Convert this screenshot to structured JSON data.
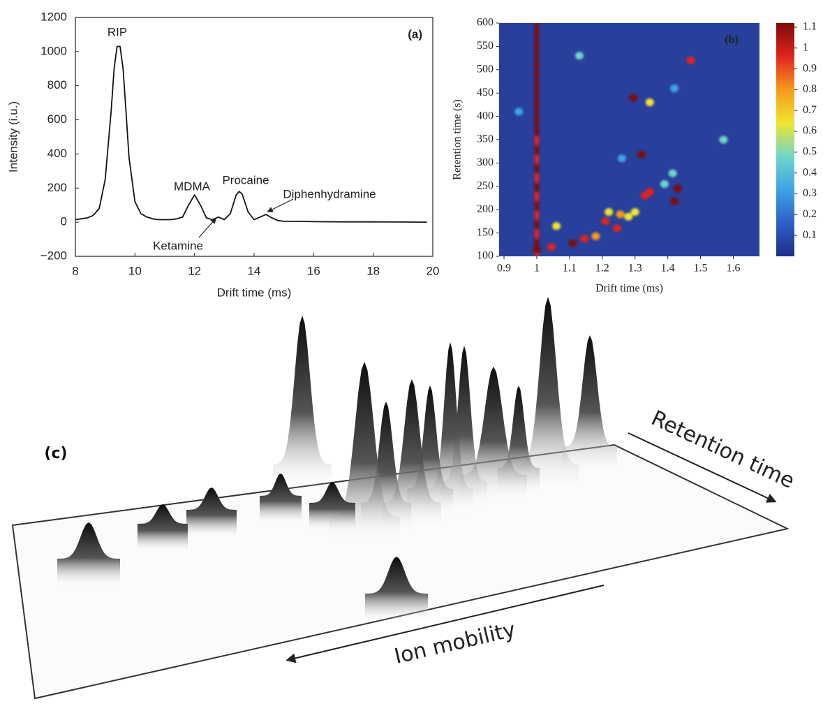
{
  "chart_data": [
    {
      "type": "line",
      "panel_label": "(a)",
      "x_label": "Drift time (ms)",
      "y_label": "Intensity (i.u.)",
      "xlim": [
        8,
        20
      ],
      "xticks": [
        8,
        10,
        12,
        14,
        16,
        18,
        20
      ],
      "ylim": [
        -200,
        1200
      ],
      "yticks": [
        {
          "value": -200,
          "label": "−200"
        },
        0,
        200,
        400,
        600,
        800,
        1000,
        1200
      ],
      "color": "#111111",
      "x": [
        8.0,
        8.2,
        8.4,
        8.6,
        8.8,
        9.0,
        9.2,
        9.3,
        9.4,
        9.5,
        9.6,
        9.7,
        9.8,
        10.0,
        10.2,
        10.4,
        10.6,
        10.8,
        11.0,
        11.2,
        11.4,
        11.6,
        11.8,
        12.0,
        12.2,
        12.4,
        12.6,
        12.8,
        13.0,
        13.2,
        13.4,
        13.5,
        13.6,
        13.8,
        14.0,
        14.2,
        14.4,
        14.6,
        14.8,
        15.0,
        15.5,
        16.0,
        17.0,
        18.0,
        19.0,
        19.8
      ],
      "values": [
        15,
        20,
        25,
        40,
        80,
        250,
        650,
        900,
        1030,
        1030,
        900,
        650,
        380,
        120,
        50,
        30,
        20,
        15,
        15,
        15,
        20,
        30,
        100,
        160,
        100,
        25,
        15,
        30,
        15,
        50,
        160,
        180,
        165,
        60,
        15,
        30,
        45,
        25,
        10,
        5,
        5,
        3,
        2,
        2,
        1,
        0
      ],
      "annotations": [
        "RIP",
        "MDMA",
        "Procaine",
        "Diphenhydramine",
        "Ketamine"
      ]
    },
    {
      "type": "heatmap",
      "panel_label": "(b)",
      "x_label": "Drift time (ms)",
      "y_label": "Retention time (s)",
      "xlim": [
        0.885,
        1.68
      ],
      "xticks": [
        0.9,
        1,
        1.1,
        1.2,
        1.3,
        1.4,
        1.5,
        1.6
      ],
      "ylim": [
        100,
        600
      ],
      "yticks": [
        100,
        150,
        200,
        250,
        300,
        350,
        400,
        450,
        500,
        550,
        600
      ],
      "clim": [
        0,
        1.12
      ],
      "cticks": [
        0.1,
        0.2,
        0.3,
        0.4,
        0.5,
        0.6,
        0.7,
        0.8,
        0.9,
        1,
        1.1
      ],
      "colorscale": [
        "#1f2f8a",
        "#2c5fc7",
        "#3fa3e6",
        "#6fd6c8",
        "#f0e530",
        "#f59a1d",
        "#e0241d",
        "#7c0a0a"
      ],
      "background_color": "#283f9b",
      "x": [
        1,
        1,
        1,
        1,
        1,
        1,
        1,
        1,
        1,
        1,
        1,
        1,
        1,
        1,
        1,
        1,
        1,
        1,
        1,
        1,
        1,
        1,
        1,
        1,
        1,
        1,
        1.045,
        1.11,
        1.145,
        1.18,
        1.21,
        1.245,
        1.255,
        1.22,
        1.28,
        1.3,
        1.33,
        1.345,
        1.43,
        1.42,
        1.32,
        1.295,
        1.345,
        1.47,
        1.13,
        1.06,
        1.57,
        1.42,
        0.945,
        1.415,
        1.39,
        1.26
      ],
      "y": [
        110,
        130,
        150,
        170,
        190,
        210,
        230,
        250,
        270,
        290,
        310,
        330,
        350,
        370,
        390,
        410,
        430,
        450,
        470,
        490,
        510,
        530,
        550,
        570,
        590,
        115,
        120,
        128,
        138,
        143,
        175,
        160,
        190,
        195,
        185,
        195,
        230,
        238,
        245,
        218,
        318,
        440,
        430,
        520,
        530,
        165,
        350,
        460,
        410,
        278,
        255,
        310
      ],
      "values": [
        0.95,
        1.1,
        0.95,
        1.1,
        0.95,
        1.1,
        0.95,
        1.05,
        0.95,
        1.1,
        1.0,
        1.1,
        0.95,
        1.05,
        1.1,
        1.1,
        1.05,
        1.1,
        1.05,
        1.1,
        1.05,
        1.1,
        1.05,
        1.1,
        1.05,
        1.1,
        1.0,
        1.05,
        0.9,
        0.8,
        0.9,
        0.9,
        0.8,
        0.6,
        0.7,
        0.6,
        1.0,
        0.9,
        1.05,
        1.05,
        1.1,
        1.05,
        0.7,
        0.95,
        0.4,
        0.6,
        0.4,
        0.35,
        0.35,
        0.5,
        0.45,
        0.35
      ]
    }
  ],
  "panel_c": {
    "panel_label": "(c)",
    "axis_labels": [
      "Retention time",
      "Ion mobility"
    ]
  }
}
